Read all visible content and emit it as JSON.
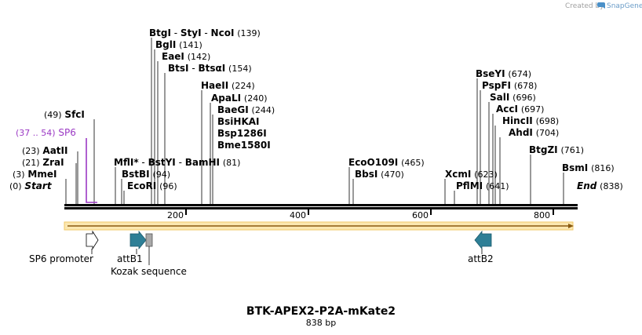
{
  "credit": "Created by",
  "brand": "SnapGene",
  "title": "BTK-APEX2-P2A-mKate2",
  "length_label": "838 bp",
  "primer": {
    "range": "(37 .. 54)",
    "name": "SP6"
  },
  "sites": {
    "btgi": {
      "name": "BtgI",
      "pos": "(139)"
    },
    "styi": {
      "name": "StyI"
    },
    "ncoi": {
      "name": "NcoI"
    },
    "bgli": {
      "name": "BglI",
      "pos": "(141)"
    },
    "eaei": {
      "name": "EaeI",
      "pos": "(142)"
    },
    "btsi": {
      "name": "BtsI",
      "pos": "(154)"
    },
    "btsai": {
      "name": "BtsαI"
    },
    "haeii": {
      "name": "HaeII",
      "pos": "(224)"
    },
    "apali": {
      "name": "ApaLI",
      "pos": "(240)"
    },
    "baegi": {
      "name": "BaeGI",
      "pos": "(244)"
    },
    "bsihkai": {
      "name": "BsiHKAI"
    },
    "bsp1286i": {
      "name": "Bsp1286I"
    },
    "bme1580i": {
      "name": "Bme1580I"
    },
    "sfci": {
      "name": "SfcI",
      "pos": "(49)"
    },
    "aatii": {
      "name": "AatII",
      "pos": "(23)"
    },
    "zrai": {
      "name": "ZraI",
      "pos": "(21)"
    },
    "mmei": {
      "name": "MmeI",
      "pos": "(3)"
    },
    "start": {
      "name": "Start",
      "pos": "(0)"
    },
    "mfli": {
      "name": "MflI",
      "star": "*"
    },
    "bstyi": {
      "name": "BstYI"
    },
    "bamhi": {
      "name": "BamHI",
      "pos": "(81)"
    },
    "bstbi": {
      "name": "BstBI",
      "pos": "(94)"
    },
    "ecori": {
      "name": "EcoRI",
      "pos": "(96)"
    },
    "ecoo109i": {
      "name": "EcoO109I",
      "pos": "(465)"
    },
    "bbsi": {
      "name": "BbsI",
      "pos": "(470)"
    },
    "bseyi": {
      "name": "BseYI",
      "pos": "(674)"
    },
    "pspfi": {
      "name": "PspFI",
      "pos": "(678)"
    },
    "sali": {
      "name": "SalI",
      "pos": "(696)"
    },
    "acci": {
      "name": "AccI",
      "pos": "(697)"
    },
    "hincii": {
      "name": "HincII",
      "pos": "(698)"
    },
    "ahdi": {
      "name": "AhdI",
      "pos": "(704)"
    },
    "btgzi": {
      "name": "BtgZI",
      "pos": "(761)"
    },
    "bsmi": {
      "name": "BsmI",
      "pos": "(816)"
    },
    "xcmi": {
      "name": "XcmI",
      "pos": "(623)"
    },
    "pflmi": {
      "name": "PflMI",
      "pos": "(641)"
    },
    "end": {
      "name": "End",
      "pos": "(838)"
    }
  },
  "ticks": [
    "200",
    "400",
    "600",
    "800"
  ],
  "features": {
    "sp6_promoter": "SP6 promoter",
    "attb1": "attB1",
    "kozak": "Kozak sequence",
    "attb2": "attB2"
  },
  "colors": {
    "primer": "#9b39c4",
    "feature_teal": "#2e7f96",
    "orf_orange": "#f0a030",
    "kozak_gray": "#a8a8a8",
    "credit_gray": "#a0a0a0",
    "brand_blue": "#4a90c8"
  }
}
